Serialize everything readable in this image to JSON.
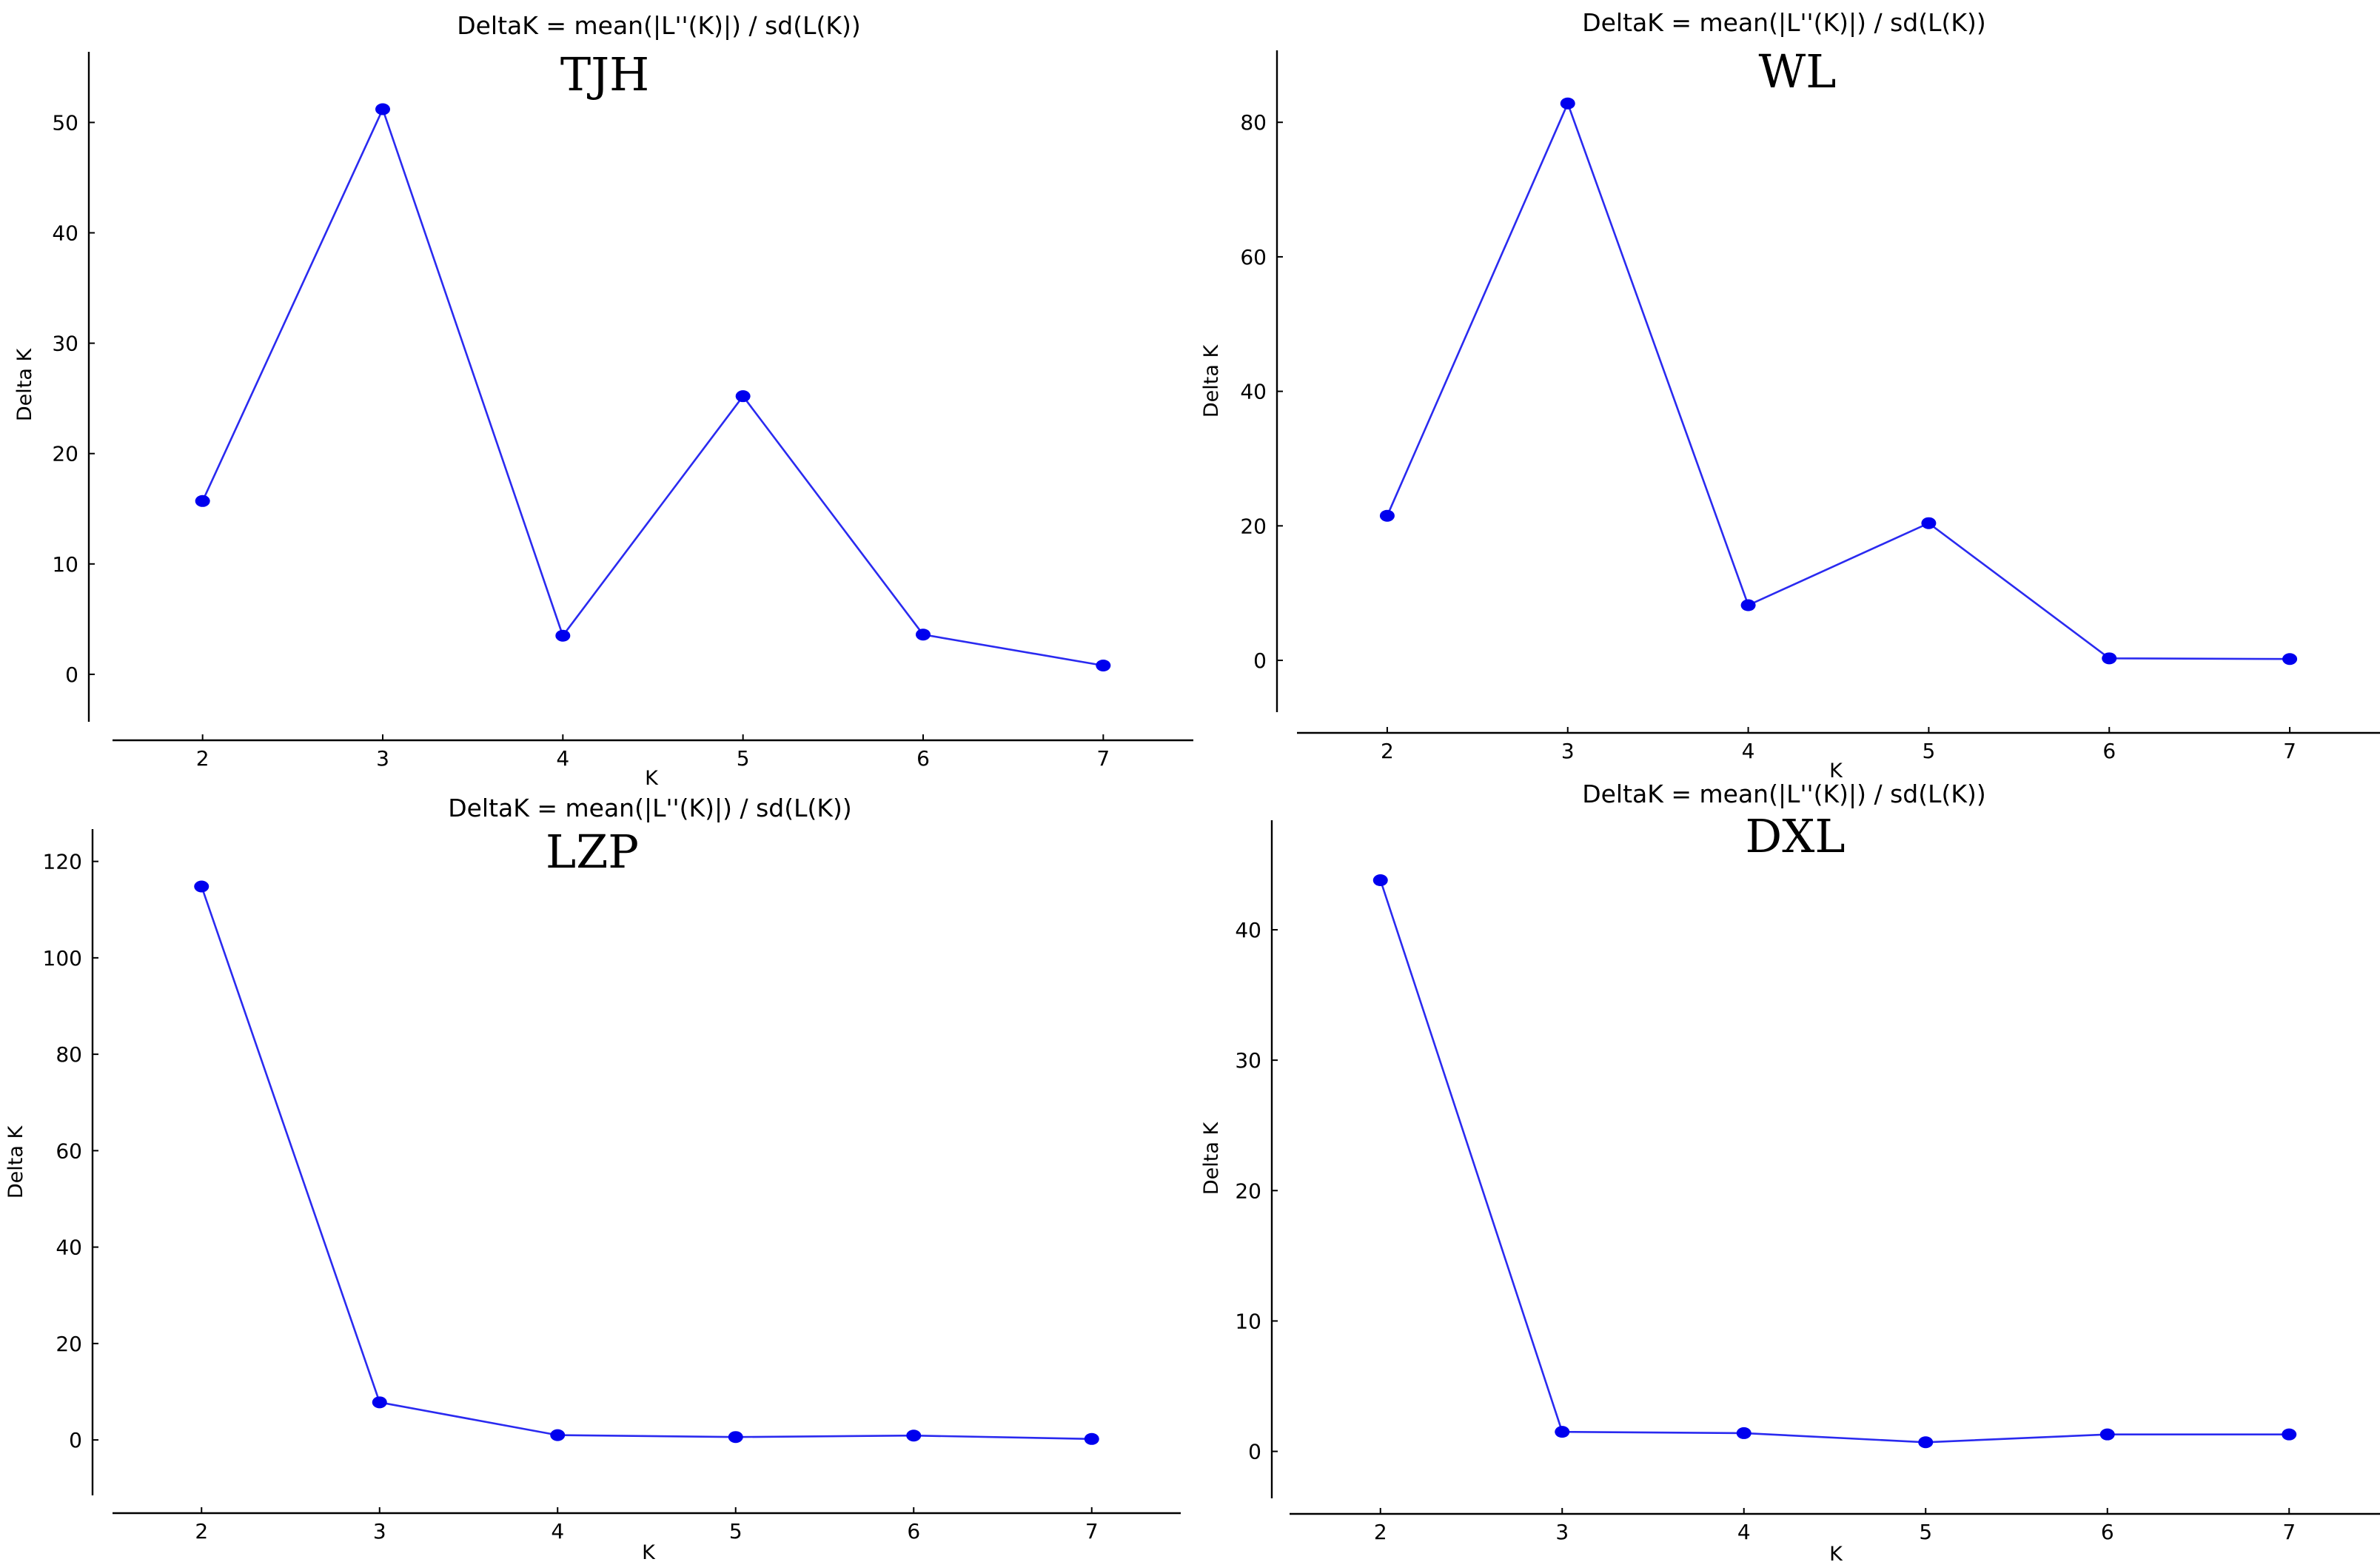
{
  "chart_data": [
    {
      "type": "line",
      "suptitle": "DeltaK = mean(|L''(K)|) / sd(L(K))",
      "title": "TJH",
      "xlabel": "K",
      "ylabel": "Delta K",
      "x": [
        2,
        3,
        4,
        5,
        6,
        7
      ],
      "series": [
        {
          "name": "Delta K",
          "values": [
            15.7,
            51.2,
            3.5,
            25.2,
            3.6,
            0.8
          ]
        }
      ],
      "xticks": [
        2,
        3,
        4,
        5,
        6,
        7
      ],
      "yticks": [
        0,
        10,
        20,
        30,
        40,
        50
      ],
      "xlim": [
        1.5,
        7.5
      ],
      "ylim": [
        -4.3,
        56.4
      ],
      "grid": false,
      "color": "#0000ee"
    },
    {
      "type": "line",
      "suptitle": "DeltaK = mean(|L''(K)|) / sd(L(K))",
      "title": "WL",
      "xlabel": "K",
      "ylabel": "Delta K",
      "x": [
        2,
        3,
        4,
        5,
        6,
        7
      ],
      "series": [
        {
          "name": "Delta K",
          "values": [
            21.5,
            82.8,
            8.2,
            20.4,
            0.3,
            0.2
          ]
        }
      ],
      "xticks": [
        2,
        3,
        4,
        5,
        6,
        7
      ],
      "yticks": [
        0,
        20,
        40,
        60,
        80
      ],
      "xlim": [
        1.5,
        7.5
      ],
      "ylim": [
        -7.7,
        90.7
      ],
      "grid": false,
      "color": "#0000ee"
    },
    {
      "type": "line",
      "suptitle": "DeltaK = mean(|L''(K)|) / sd(L(K))",
      "title": "LZP",
      "xlabel": "K",
      "ylabel": "Delta K",
      "x": [
        2,
        3,
        4,
        5,
        6,
        7
      ],
      "series": [
        {
          "name": "Delta K",
          "values": [
            114.8,
            7.8,
            1.0,
            0.6,
            0.9,
            0.2
          ]
        }
      ],
      "xticks": [
        2,
        3,
        4,
        5,
        6,
        7
      ],
      "yticks": [
        0,
        20,
        40,
        60,
        80,
        100,
        120
      ],
      "xlim": [
        1.5,
        7.5
      ],
      "ylim": [
        -11.5,
        126.7
      ],
      "grid": false,
      "color": "#0000ee"
    },
    {
      "type": "line",
      "suptitle": "DeltaK = mean(|L''(K)|) / sd(L(K))",
      "title": "DXL",
      "xlabel": "K",
      "ylabel": "Delta K",
      "x": [
        2,
        3,
        4,
        5,
        6,
        7
      ],
      "series": [
        {
          "name": "Delta K",
          "values": [
            43.8,
            1.5,
            1.4,
            0.7,
            1.3,
            1.3
          ]
        }
      ],
      "xticks": [
        2,
        3,
        4,
        5,
        6,
        7
      ],
      "yticks": [
        0,
        10,
        20,
        30,
        40
      ],
      "xlim": [
        1.5,
        7.5
      ],
      "ylim": [
        -3.6,
        48.4
      ],
      "grid": false,
      "color": "#0000ee"
    }
  ]
}
